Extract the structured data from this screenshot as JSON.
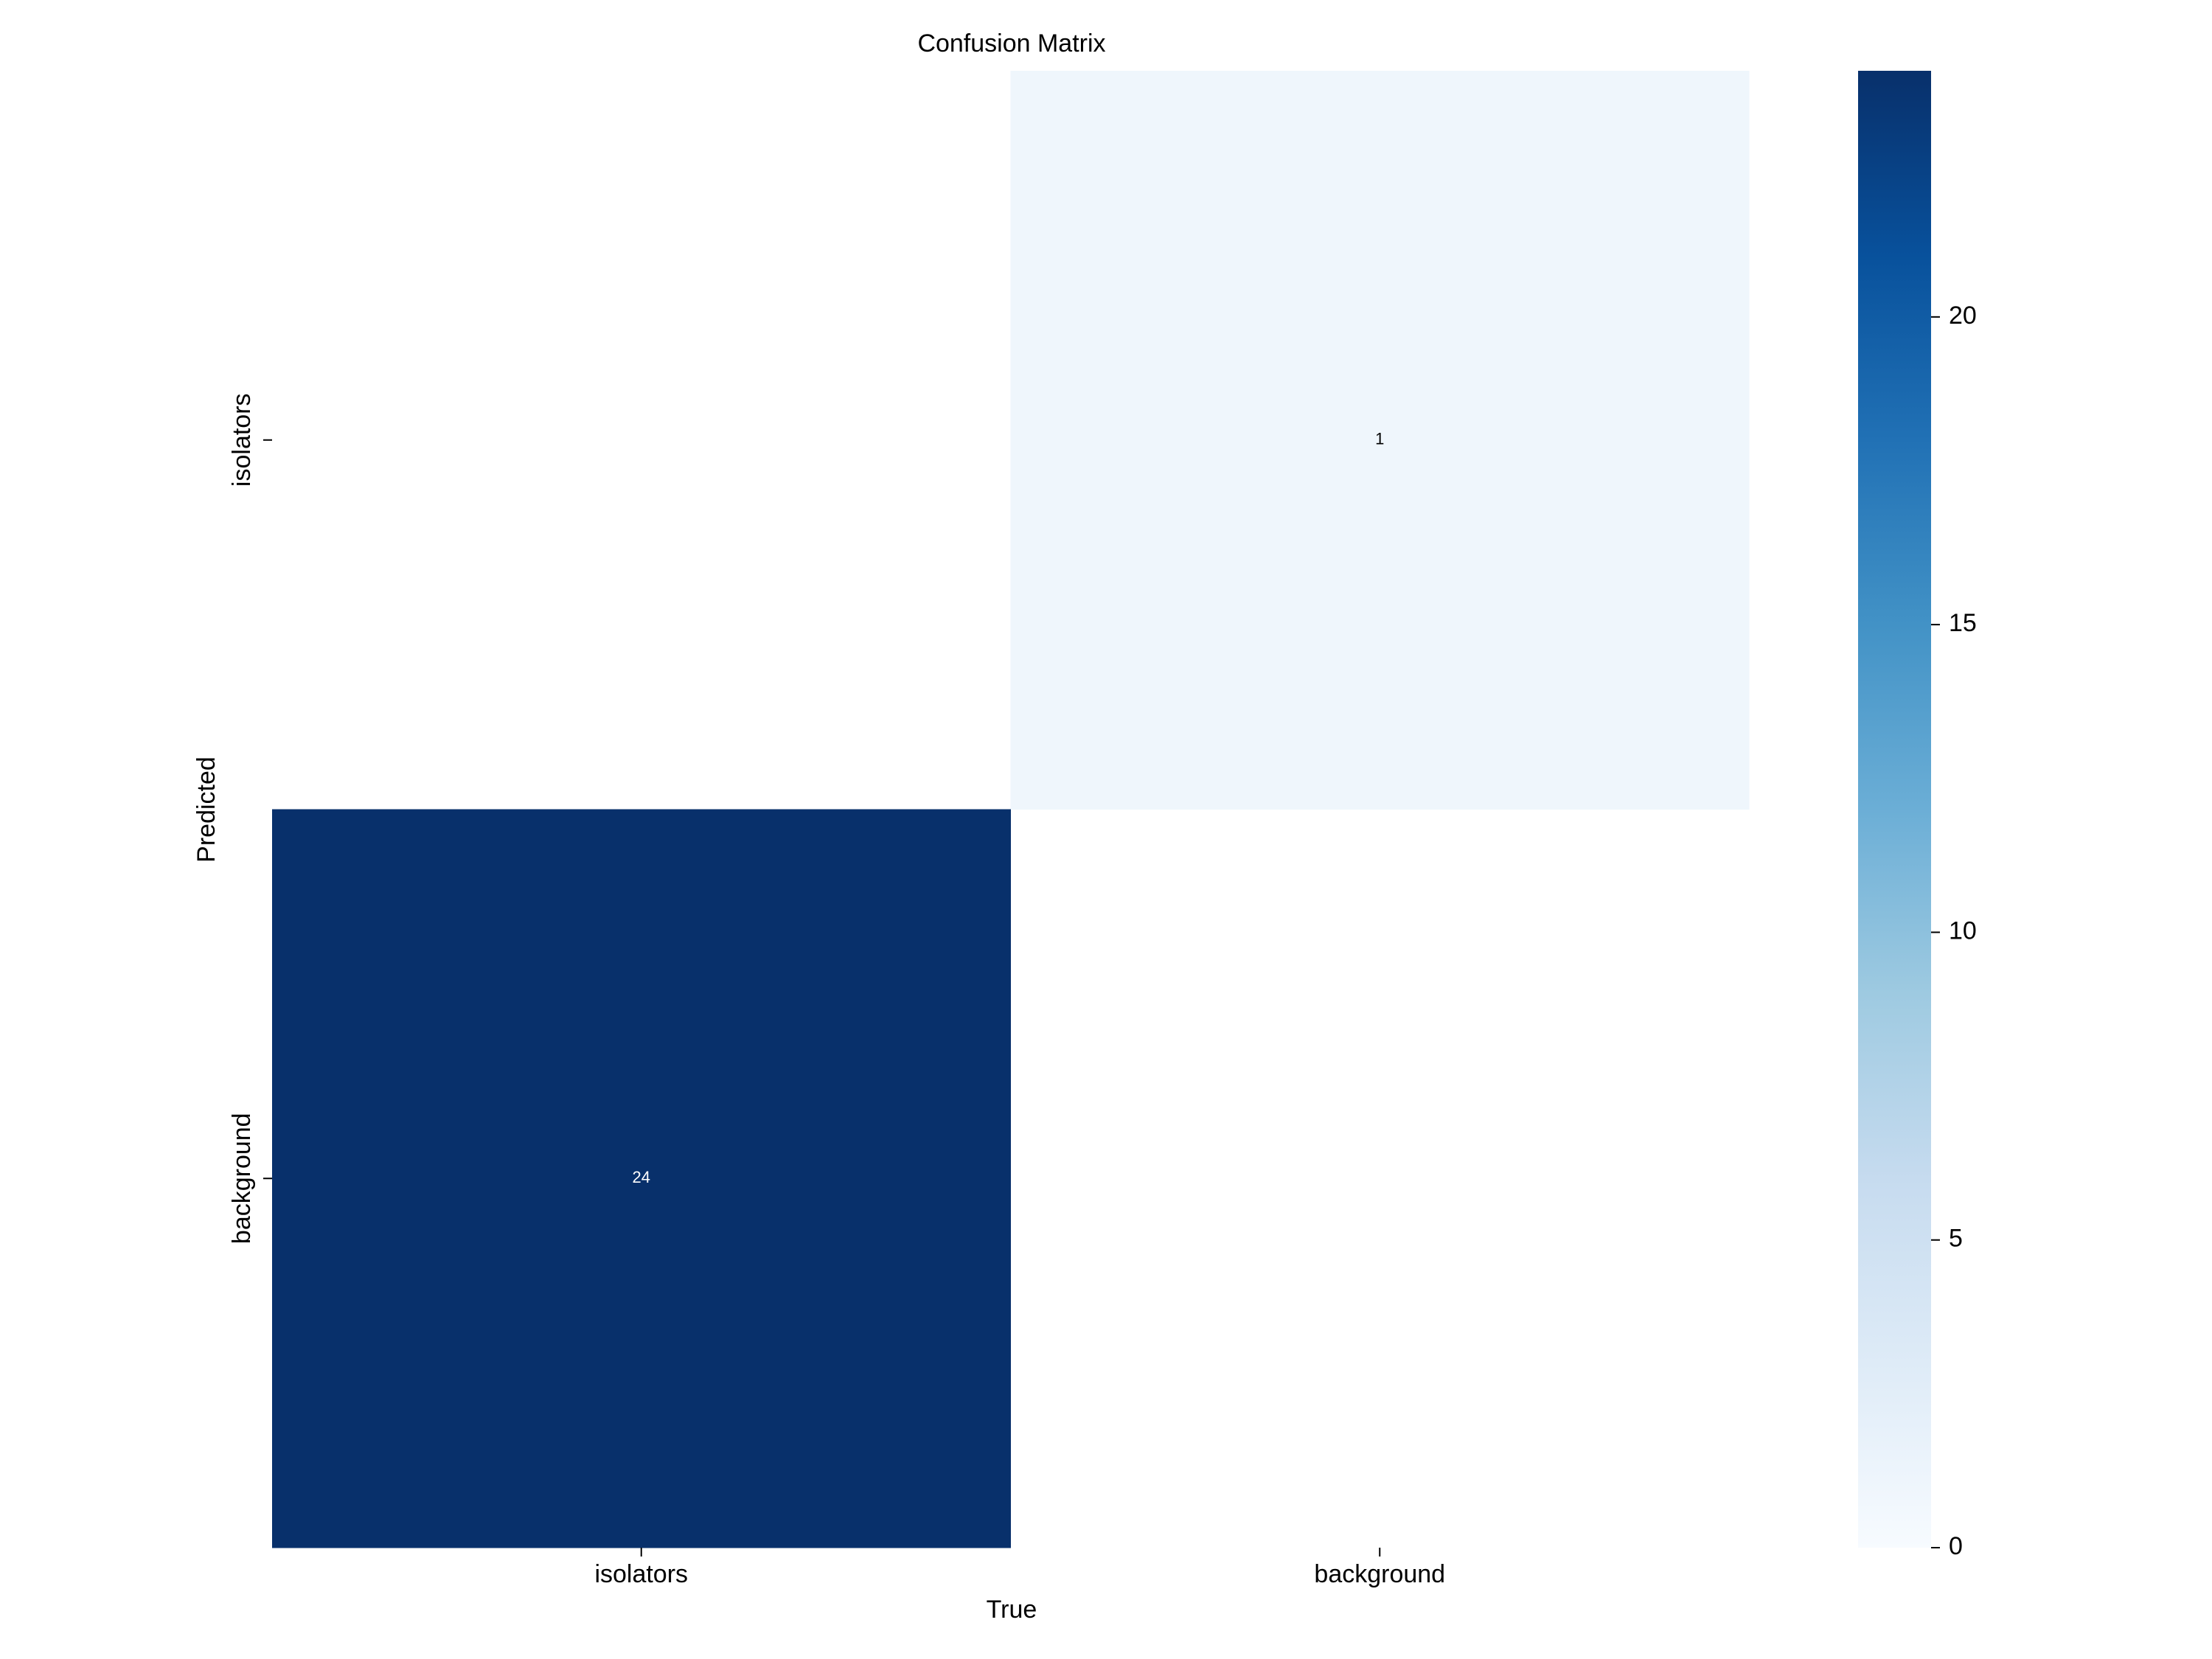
{
  "chart_data": {
    "type": "heatmap",
    "title": "Confusion Matrix",
    "x_label": "True",
    "y_label": "Predicted",
    "x_categories": [
      "isolators",
      "background"
    ],
    "y_categories": [
      "isolators",
      "background"
    ],
    "values": [
      [
        null,
        1
      ],
      [
        24,
        null
      ]
    ],
    "colormap": [
      "#f7fbff",
      "#deebf7",
      "#c6dbef",
      "#9ecae1",
      "#6baed6",
      "#4292c6",
      "#2171b5",
      "#08519c",
      "#08306b"
    ],
    "clim": [
      0,
      24
    ],
    "cticks": [
      0,
      5,
      10,
      15,
      20
    ]
  }
}
